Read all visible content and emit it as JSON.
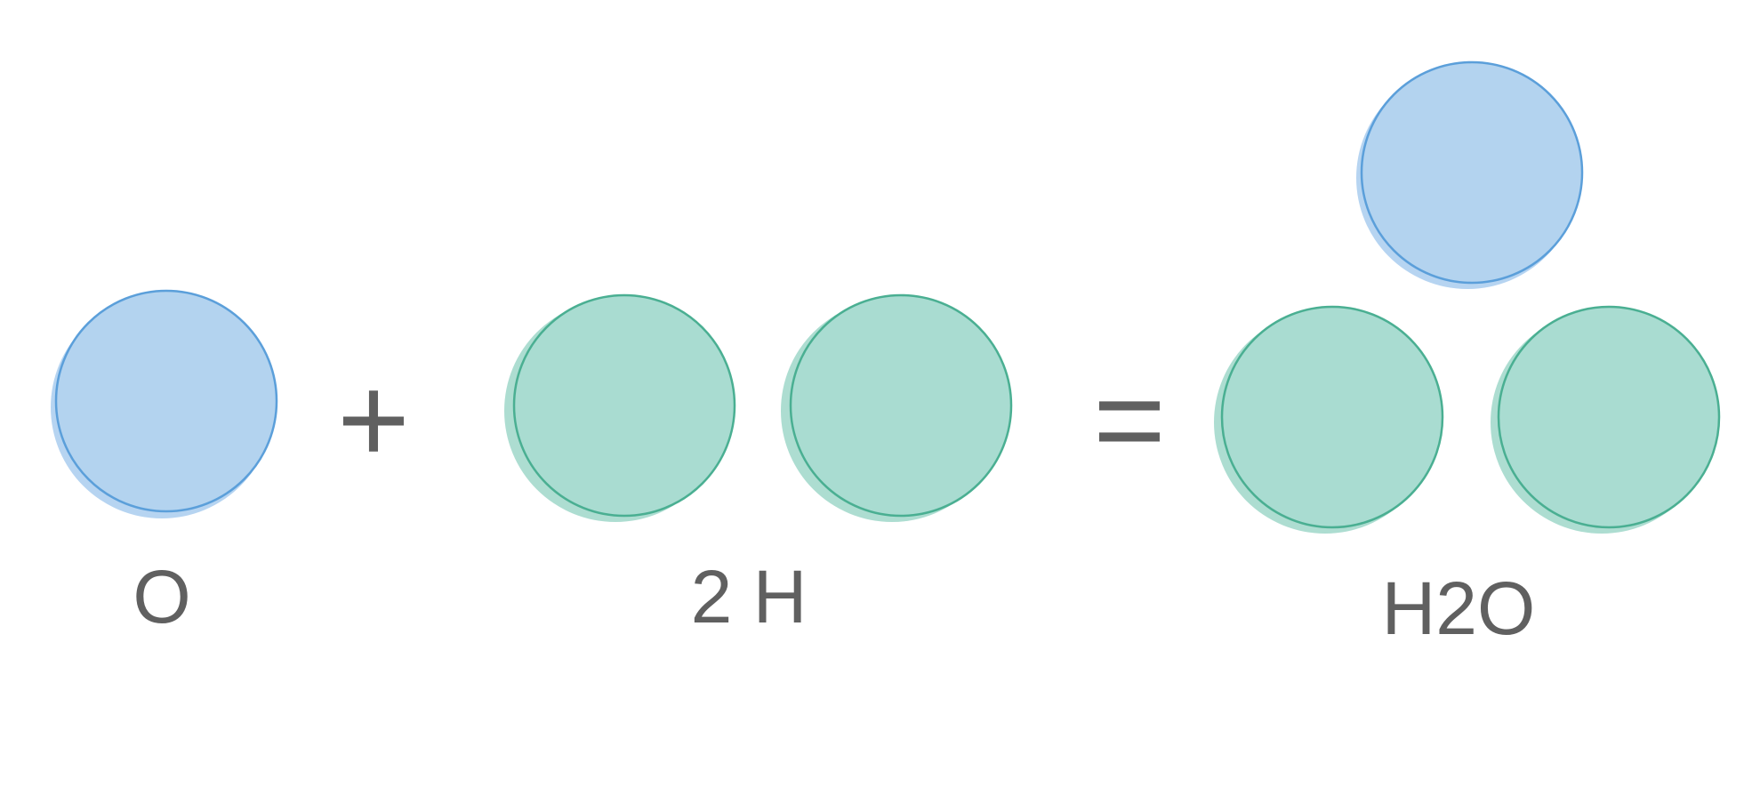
{
  "colors": {
    "oxygen_fill": "#b3d3ef",
    "oxygen_stroke": "#5b9fda",
    "oxygen_shadow": "#a9cdee",
    "hydrogen_fill": "#a9dcd1",
    "hydrogen_stroke": "#4aaf92",
    "hydrogen_shadow": "#9fd7c9",
    "text": "#606060"
  },
  "atoms": {
    "reactant_oxygen": "oxygen",
    "reactant_hydrogen_1": "hydrogen",
    "reactant_hydrogen_2": "hydrogen",
    "product_oxygen": "oxygen",
    "product_hydrogen_1": "hydrogen",
    "product_hydrogen_2": "hydrogen"
  },
  "operators": {
    "plus": "+",
    "equals": "="
  },
  "labels": {
    "oxygen": "O",
    "hydrogen": "2 H",
    "water": "H2O"
  }
}
